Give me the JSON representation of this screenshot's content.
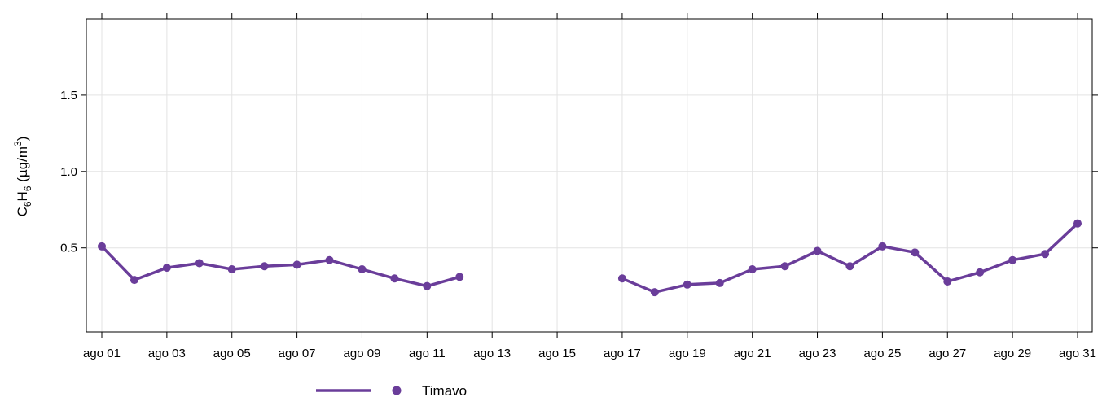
{
  "chart_data": {
    "type": "line",
    "ylabel": {
      "base": "C",
      "sub1": "6",
      "mid": "H",
      "sub2": "6",
      "unit_prefix": " (µg/m",
      "unit_sup": "3",
      "unit_suffix": ")"
    },
    "ylim": [
      -0.05,
      2.0
    ],
    "y_ticks": [
      0.5,
      1.0,
      1.5
    ],
    "y_tick_labels": [
      "0.5",
      "1.0",
      "1.5"
    ],
    "x_range_days": [
      1,
      31
    ],
    "x_ticks": [
      1,
      3,
      5,
      7,
      9,
      11,
      13,
      15,
      17,
      19,
      21,
      23,
      25,
      27,
      29,
      31
    ],
    "x_tick_labels": [
      "ago 01",
      "ago 03",
      "ago 05",
      "ago 07",
      "ago 09",
      "ago 11",
      "ago 13",
      "ago 15",
      "ago 17",
      "ago 19",
      "ago 21",
      "ago 23",
      "ago 25",
      "ago 27",
      "ago 29",
      "ago 31"
    ],
    "grid": true,
    "legend_position": "bottom",
    "series": [
      {
        "name": "Timavo",
        "color": "#6a3d9a",
        "points": [
          {
            "day": 1,
            "value": 0.51
          },
          {
            "day": 2,
            "value": 0.29
          },
          {
            "day": 3,
            "value": 0.37
          },
          {
            "day": 4,
            "value": 0.4
          },
          {
            "day": 5,
            "value": 0.36
          },
          {
            "day": 6,
            "value": 0.38
          },
          {
            "day": 7,
            "value": 0.39
          },
          {
            "day": 8,
            "value": 0.42
          },
          {
            "day": 9,
            "value": 0.36
          },
          {
            "day": 10,
            "value": 0.3
          },
          {
            "day": 11,
            "value": 0.25
          },
          {
            "day": 12,
            "value": 0.31
          },
          {
            "day": 13,
            "value": null
          },
          {
            "day": 14,
            "value": null
          },
          {
            "day": 15,
            "value": null
          },
          {
            "day": 16,
            "value": null
          },
          {
            "day": 17,
            "value": 0.3
          },
          {
            "day": 18,
            "value": 0.21
          },
          {
            "day": 19,
            "value": 0.26
          },
          {
            "day": 20,
            "value": 0.27
          },
          {
            "day": 21,
            "value": 0.36
          },
          {
            "day": 22,
            "value": 0.38
          },
          {
            "day": 23,
            "value": 0.48
          },
          {
            "day": 24,
            "value": 0.38
          },
          {
            "day": 25,
            "value": 0.51
          },
          {
            "day": 26,
            "value": 0.47
          },
          {
            "day": 27,
            "value": 0.28
          },
          {
            "day": 28,
            "value": 0.34
          },
          {
            "day": 29,
            "value": 0.42
          },
          {
            "day": 30,
            "value": 0.46
          },
          {
            "day": 31,
            "value": 0.66
          }
        ]
      }
    ]
  }
}
